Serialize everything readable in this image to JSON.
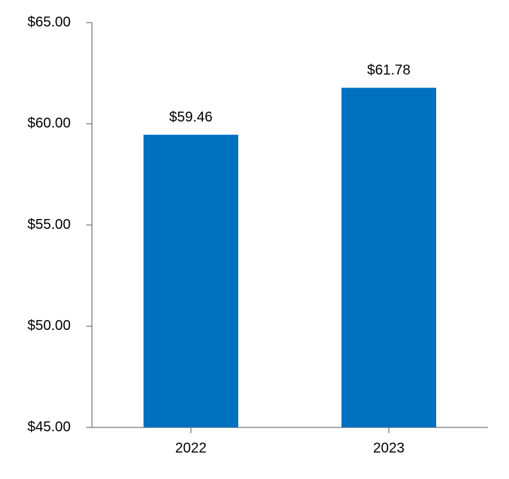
{
  "chart_data": {
    "type": "bar",
    "categories": [
      "2022",
      "2023"
    ],
    "values": [
      59.46,
      61.78
    ],
    "value_labels": [
      "$59.46",
      "$61.78"
    ],
    "color": "#0070c0",
    "ylim": [
      45,
      65
    ],
    "yticks": [
      {
        "value": 45,
        "label": "$45.00"
      },
      {
        "value": 50,
        "label": "$50.00"
      },
      {
        "value": 55,
        "label": "$55.00"
      },
      {
        "value": 60,
        "label": "$60.00"
      },
      {
        "value": 65,
        "label": "$65.00"
      }
    ],
    "grid": false
  }
}
